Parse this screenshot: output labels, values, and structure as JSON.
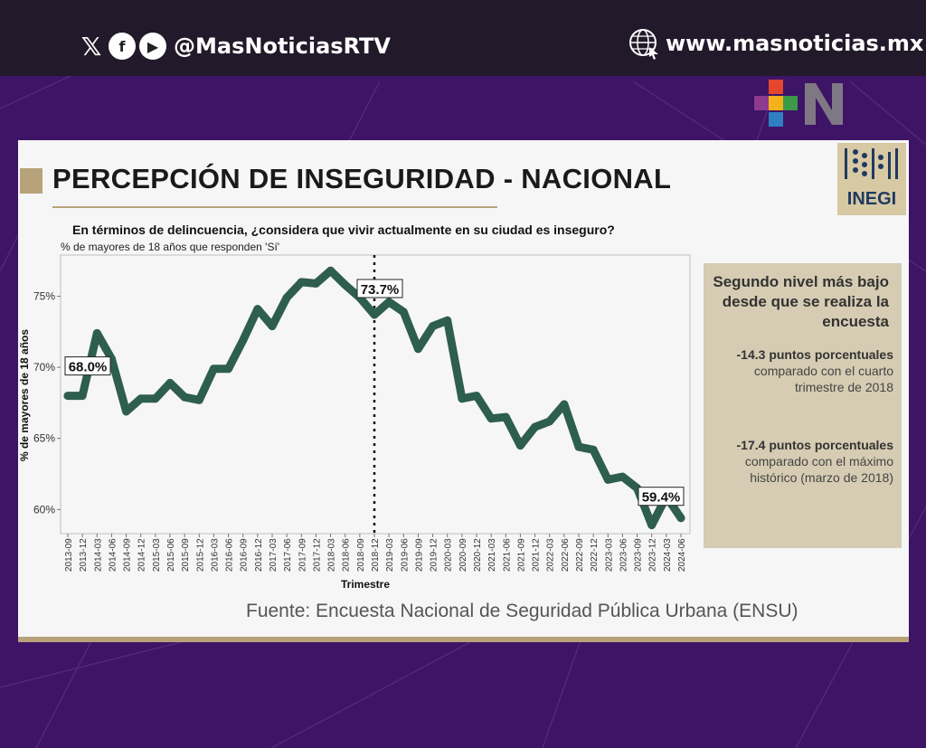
{
  "header": {
    "social_handle": "@MasNoticiasRTV",
    "website": "www.masnoticias.mx",
    "social_icons": [
      "x-icon",
      "facebook-icon",
      "youtube-icon"
    ]
  },
  "card": {
    "title": "PERCEPCIÓN DE INSEGURIDAD - NACIONAL",
    "logo_text": "INEGI",
    "question": "En términos de delincuencia, ¿considera que vivir actualmente en su ciudad es inseguro?",
    "subtitle": "% de mayores de 18 años que responden 'Sí'",
    "source": "Fuente: Encuesta Nacional de Seguridad Pública Urbana (ENSU)"
  },
  "sidebox": {
    "heading": "Segundo nivel más bajo desde que se realiza la encuesta",
    "stat1_bold": "-14.3 puntos porcentuales",
    "stat1_rest": "comparado con el cuarto trimestre de 2018",
    "stat2_bold": "-17.4 puntos porcentuales",
    "stat2_rest": "comparado con el máximo histórico (marzo de 2018)"
  },
  "colors": {
    "line": "#2e5e4e",
    "accent": "#b8a27a",
    "background": "#3d1466",
    "sidebox": "#d6ccb3"
  },
  "chart_data": {
    "type": "line",
    "xlabel": "Trimestre",
    "ylabel": "% de mayores de 18 años",
    "ylim": [
      58.3,
      77.9
    ],
    "yticks": [
      60,
      65,
      70,
      75
    ],
    "ytick_labels": [
      "60%",
      "65%",
      "70%",
      "75%"
    ],
    "grid": false,
    "categories": [
      "2013-09",
      "2013-12",
      "2014-03",
      "2014-06",
      "2014-09",
      "2014-12",
      "2015-03",
      "2015-06",
      "2015-09",
      "2015-12",
      "2016-03",
      "2016-06",
      "2016-09",
      "2016-12",
      "2017-03",
      "2017-06",
      "2017-09",
      "2017-12",
      "2018-03",
      "2018-06",
      "2018-09",
      "2018-12",
      "2019-03",
      "2019-06",
      "2019-09",
      "2019-12",
      "2020-03",
      "2020-09",
      "2020-12",
      "2021-03",
      "2021-06",
      "2021-09",
      "2021-12",
      "2022-03",
      "2022-06",
      "2022-09",
      "2022-12",
      "2023-03",
      "2023-06",
      "2023-09",
      "2023-12",
      "2024-03",
      "2024-06"
    ],
    "values": [
      68.0,
      68.0,
      72.4,
      70.6,
      66.9,
      67.8,
      67.8,
      68.9,
      67.9,
      67.7,
      69.9,
      69.9,
      71.9,
      74.1,
      72.9,
      74.9,
      76.0,
      75.9,
      76.8,
      75.8,
      74.9,
      73.7,
      74.6,
      73.9,
      71.3,
      72.9,
      73.3,
      67.8,
      68.0,
      66.4,
      66.5,
      64.5,
      65.8,
      66.2,
      67.4,
      64.4,
      64.2,
      62.1,
      62.3,
      61.5,
      58.9,
      60.9,
      59.4
    ],
    "annotations": [
      {
        "index": 0,
        "label": "68.0%"
      },
      {
        "index": 21,
        "label": "73.7%"
      },
      {
        "index": 42,
        "label": "59.4%"
      }
    ],
    "reference_line_index": 21
  }
}
